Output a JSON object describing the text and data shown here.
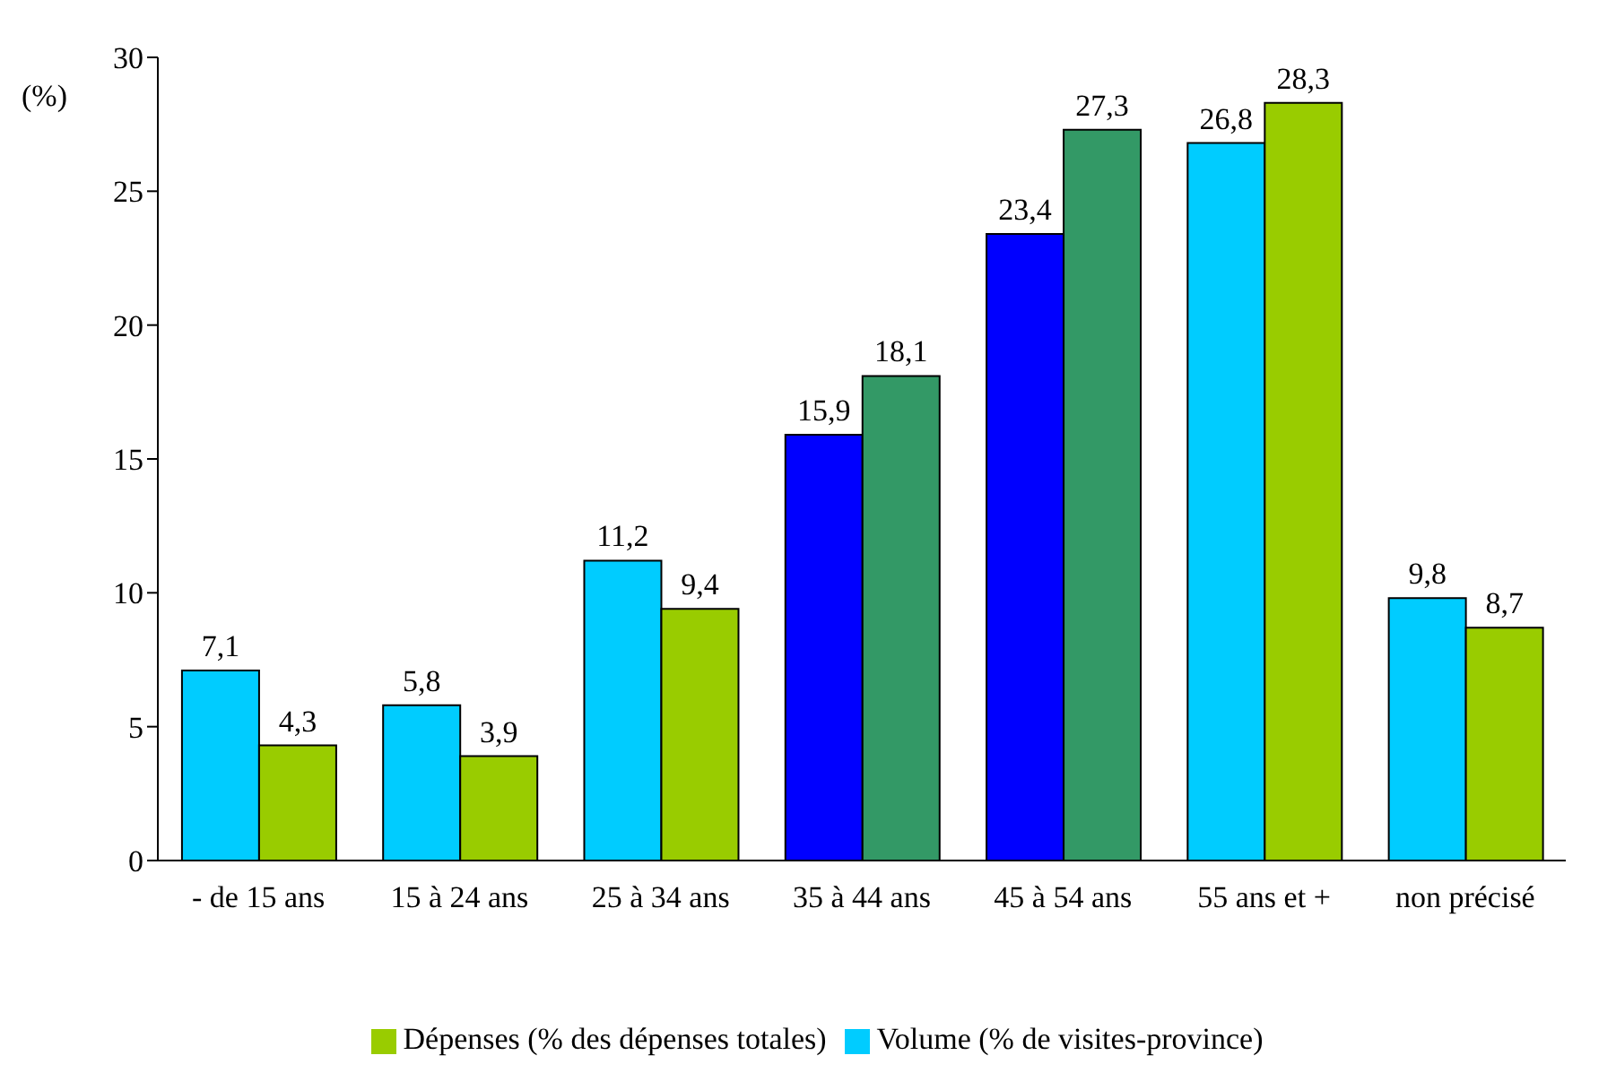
{
  "chart_data": {
    "type": "bar",
    "ylabel": "(%)",
    "categories": [
      "- de 15 ans",
      "15 à 24 ans",
      "25 à 34 ans",
      "35 à 44 ans",
      "45 à 54 ans",
      "55 ans et +",
      "non précisé"
    ],
    "series": [
      {
        "name": "Volume (% de visites-province)",
        "color": "#00ccff",
        "colors": [
          "#00ccff",
          "#00ccff",
          "#00ccff",
          "#0000ff",
          "#0000ff",
          "#00ccff",
          "#00ccff"
        ],
        "values": [
          7.1,
          5.8,
          11.2,
          15.9,
          23.4,
          26.8,
          9.8
        ],
        "value_labels": [
          "7,1",
          "5,8",
          "11,2",
          "15,9",
          "23,4",
          "26,8",
          "9,8"
        ]
      },
      {
        "name": "Dépenses (% des dépenses totales)",
        "color": "#99cc00",
        "colors": [
          "#99cc00",
          "#99cc00",
          "#99cc00",
          "#339966",
          "#339966",
          "#99cc00",
          "#99cc00"
        ],
        "values": [
          4.3,
          3.9,
          9.4,
          18.1,
          27.3,
          28.3,
          8.7
        ],
        "value_labels": [
          "4,3",
          "3,9",
          "9,4",
          "18,1",
          "27,3",
          "28,3",
          "8,7"
        ]
      }
    ],
    "ylim": [
      0,
      30
    ],
    "yticks": [
      0,
      5,
      10,
      15,
      20,
      25,
      30
    ],
    "grid": false,
    "legend": "bottom"
  }
}
